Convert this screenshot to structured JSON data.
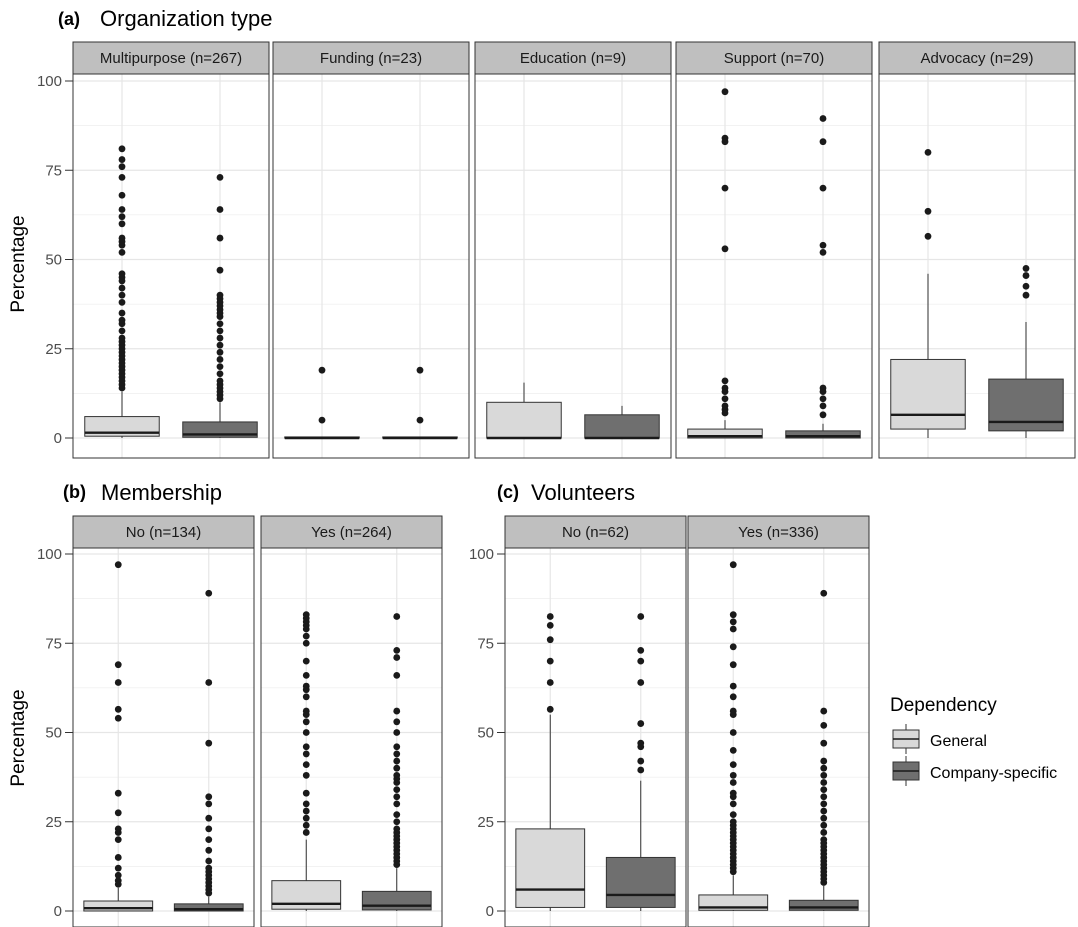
{
  "colors": {
    "general": "#d9d9d9",
    "company_specific": "#6f6f6f",
    "strip": "#bfbfbf",
    "border": "#333333",
    "grid": "#e6e6e6",
    "outlier": "#1a1a1a"
  },
  "legend": {
    "title": "Dependency",
    "items": [
      "General",
      "Company-specific"
    ]
  },
  "chart_data": [
    {
      "type": "box",
      "section_label": "(a)",
      "title": "Organization type",
      "ylabel": "Percentage",
      "ylim": [
        0,
        100
      ],
      "yticks": [
        0,
        25,
        50,
        75,
        100
      ],
      "grid": true,
      "series_order": [
        "General",
        "Company-specific"
      ],
      "facets": [
        {
          "label": "Multipurpose (n=267)",
          "boxes": [
            {
              "series": "General",
              "whisker_low": 0,
              "q1": 0.5,
              "median": 1.5,
              "q3": 6,
              "whisker_high": 13,
              "outliers": [
                14,
                15,
                16,
                17,
                18,
                19,
                20,
                21,
                22,
                23,
                24,
                25,
                26,
                27,
                28,
                30,
                32,
                33,
                35,
                38,
                40,
                42,
                44,
                45,
                46,
                52,
                54,
                55,
                56,
                60,
                62,
                64,
                68,
                73,
                76,
                78,
                81
              ]
            },
            {
              "series": "Company-specific",
              "whisker_low": 0,
              "q1": 0.2,
              "median": 1,
              "q3": 4.5,
              "whisker_high": 10,
              "outliers": [
                11,
                12,
                13,
                14,
                15,
                16,
                18,
                20,
                22,
                24,
                26,
                28,
                30,
                32,
                34,
                35,
                36,
                37,
                38,
                39,
                40,
                47,
                56,
                64,
                73
              ]
            }
          ]
        },
        {
          "label": "Funding (n=23)",
          "boxes": [
            {
              "series": "General",
              "whisker_low": 0,
              "q1": 0,
              "median": 0,
              "q3": 0.3,
              "whisker_high": 0.3,
              "outliers": [
                5,
                19
              ]
            },
            {
              "series": "Company-specific",
              "whisker_low": 0,
              "q1": 0,
              "median": 0,
              "q3": 0.3,
              "whisker_high": 0.3,
              "outliers": [
                5,
                19
              ]
            }
          ]
        },
        {
          "label": "Education (n=9)",
          "boxes": [
            {
              "series": "General",
              "whisker_low": 0,
              "q1": 0,
              "median": 0,
              "q3": 10,
              "whisker_high": 15.5,
              "outliers": []
            },
            {
              "series": "Company-specific",
              "whisker_low": 0,
              "q1": 0,
              "median": 0,
              "q3": 6.5,
              "whisker_high": 9,
              "outliers": []
            }
          ]
        },
        {
          "label": "Support (n=70)",
          "boxes": [
            {
              "series": "General",
              "whisker_low": 0,
              "q1": 0,
              "median": 0.5,
              "q3": 2.5,
              "whisker_high": 5,
              "outliers": [
                7,
                8,
                9,
                11,
                13,
                14,
                16,
                53,
                70,
                83,
                84,
                97
              ]
            },
            {
              "series": "Company-specific",
              "whisker_low": 0,
              "q1": 0,
              "median": 0.5,
              "q3": 2,
              "whisker_high": 4,
              "outliers": [
                6.5,
                9,
                11,
                13,
                14,
                52,
                54,
                70,
                83,
                89.5
              ]
            }
          ]
        },
        {
          "label": "Advocacy (n=29)",
          "boxes": [
            {
              "series": "General",
              "whisker_low": 0,
              "q1": 2.5,
              "median": 6.5,
              "q3": 22,
              "whisker_high": 46,
              "outliers": [
                56.5,
                63.5,
                80
              ]
            },
            {
              "series": "Company-specific",
              "whisker_low": 0,
              "q1": 2,
              "median": 4.5,
              "q3": 16.5,
              "whisker_high": 32.5,
              "outliers": [
                40,
                42.5,
                45.5,
                47.5
              ]
            }
          ]
        }
      ]
    },
    {
      "type": "box",
      "section_label": "(b)",
      "title": "Membership",
      "ylabel": "Percentage",
      "ylim": [
        0,
        100
      ],
      "yticks": [
        0,
        25,
        50,
        75,
        100
      ],
      "grid": true,
      "series_order": [
        "General",
        "Company-specific"
      ],
      "facets": [
        {
          "label": "No (n=134)",
          "boxes": [
            {
              "series": "General",
              "whisker_low": 0,
              "q1": 0,
              "median": 0.8,
              "q3": 2.8,
              "whisker_high": 6.5,
              "outliers": [
                7.5,
                8.5,
                10,
                12,
                15,
                20,
                22,
                23,
                27.5,
                33,
                54,
                56.5,
                64,
                69,
                97
              ]
            },
            {
              "series": "Company-specific",
              "whisker_low": 0,
              "q1": 0,
              "median": 0.5,
              "q3": 2,
              "whisker_high": 4,
              "outliers": [
                5,
                6,
                7,
                8,
                9,
                10,
                11,
                12,
                14,
                17,
                20,
                23,
                26,
                30,
                32,
                47,
                64,
                89
              ]
            }
          ]
        },
        {
          "label": "Yes (n=264)",
          "boxes": [
            {
              "series": "General",
              "whisker_low": 0,
              "q1": 0.5,
              "median": 2,
              "q3": 8.5,
              "whisker_high": 20,
              "outliers": [
                22,
                24,
                26,
                28,
                30,
                33,
                38,
                41,
                44,
                46,
                50,
                53,
                55,
                56,
                60,
                62,
                63,
                66,
                70,
                75,
                77,
                79,
                80,
                81,
                82,
                83
              ]
            },
            {
              "series": "Company-specific",
              "whisker_low": 0,
              "q1": 0.3,
              "median": 1.5,
              "q3": 5.5,
              "whisker_high": 12,
              "outliers": [
                13,
                14,
                15,
                16,
                17,
                18,
                19,
                20,
                21,
                22,
                23,
                25,
                27,
                30,
                32,
                34,
                36,
                37,
                38,
                40,
                42,
                44,
                46,
                50,
                53,
                56,
                66,
                71,
                73,
                82.5
              ]
            }
          ]
        }
      ]
    },
    {
      "type": "box",
      "section_label": "(c)",
      "title": "Volunteers",
      "ylabel": "",
      "ylim": [
        0,
        100
      ],
      "yticks": [
        0,
        25,
        50,
        75,
        100
      ],
      "grid": true,
      "series_order": [
        "General",
        "Company-specific"
      ],
      "facets": [
        {
          "label": "No (n=62)",
          "boxes": [
            {
              "series": "General",
              "whisker_low": 0,
              "q1": 1,
              "median": 6,
              "q3": 23,
              "whisker_high": 55,
              "outliers": [
                56.5,
                64,
                70,
                76,
                80,
                82.5
              ]
            },
            {
              "series": "Company-specific",
              "whisker_low": 0,
              "q1": 1,
              "median": 4.5,
              "q3": 15,
              "whisker_high": 36.5,
              "outliers": [
                39.5,
                42,
                46,
                47,
                52.5,
                64,
                70,
                73,
                82.5
              ]
            }
          ]
        },
        {
          "label": "Yes (n=336)",
          "boxes": [
            {
              "series": "General",
              "whisker_low": 0,
              "q1": 0.2,
              "median": 1,
              "q3": 4.5,
              "whisker_high": 10,
              "outliers": [
                11,
                12,
                13,
                14,
                15,
                16,
                17,
                18,
                19,
                20,
                21,
                22,
                23,
                24,
                25,
                27,
                30,
                32,
                33,
                36,
                38,
                41,
                45,
                50,
                55,
                56,
                60,
                63,
                69,
                74,
                79,
                81,
                83,
                97
              ]
            },
            {
              "series": "Company-specific",
              "whisker_low": 0,
              "q1": 0.2,
              "median": 1,
              "q3": 3,
              "whisker_high": 7,
              "outliers": [
                8,
                9,
                10,
                11,
                12,
                13,
                14,
                15,
                16,
                17,
                18,
                19,
                20,
                22,
                24,
                26,
                28,
                30,
                32,
                34,
                36,
                38,
                40,
                42,
                47,
                52,
                56,
                89
              ]
            }
          ]
        }
      ]
    }
  ]
}
